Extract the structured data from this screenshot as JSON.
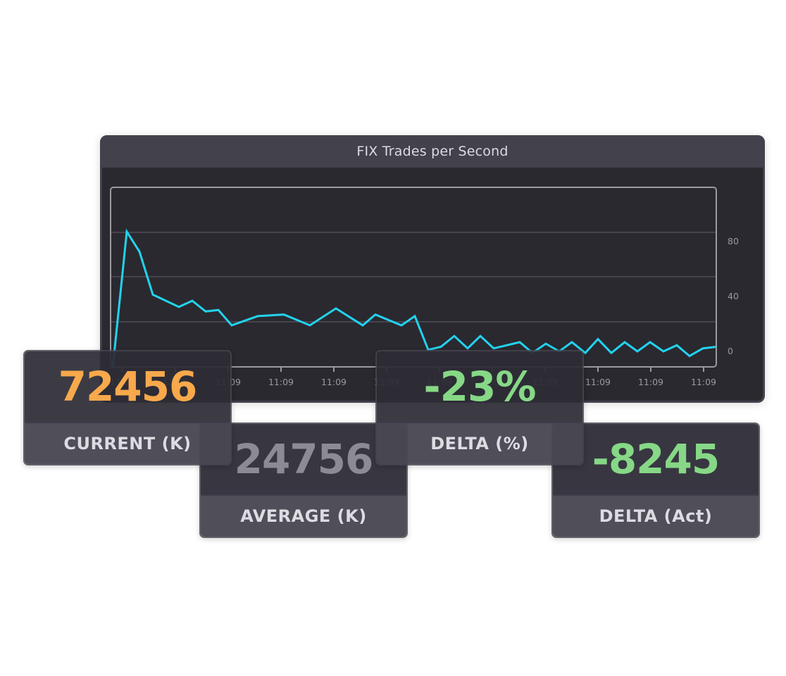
{
  "panel": {
    "title": "FIX Trades per Second"
  },
  "colors": {
    "line": "#22d3ee",
    "current": "#f7a94b",
    "average": "#8c8b93",
    "delta": "#86d886"
  },
  "chart_data": {
    "type": "line",
    "title": "FIX Trades per Second",
    "xlabel": "",
    "ylabel": "",
    "y_tick_labels": [
      "80",
      "40",
      "0"
    ],
    "ylim": [
      0,
      100
    ],
    "grid": true,
    "y_axis_position": "right",
    "x_tick_labels": [
      "11:09",
      "11:09",
      "11:09",
      "11:09",
      "11:09",
      "11:09",
      "11:09",
      "11:09",
      "11:09",
      "11:09",
      "11:09",
      "11:09"
    ],
    "series": [
      {
        "name": "Trades per Second",
        "color": "#22d3ee",
        "values": [
          0,
          89,
          76,
          48,
          40,
          44,
          37,
          38,
          28,
          34,
          35,
          28,
          39,
          28,
          35,
          28,
          34,
          12,
          14,
          21,
          13,
          21,
          13,
          17,
          10,
          16,
          11,
          17,
          10,
          19,
          10,
          17,
          11,
          17,
          11,
          15,
          8,
          13,
          14
        ]
      }
    ]
  },
  "cards": [
    {
      "value": "72456",
      "label": "CURRENT (K)"
    },
    {
      "value": "24756",
      "label": "AVERAGE (K)"
    },
    {
      "value": "-23%",
      "label": "DELTA (%)"
    },
    {
      "value": "-8245",
      "label": "DELTA (Act)"
    }
  ]
}
